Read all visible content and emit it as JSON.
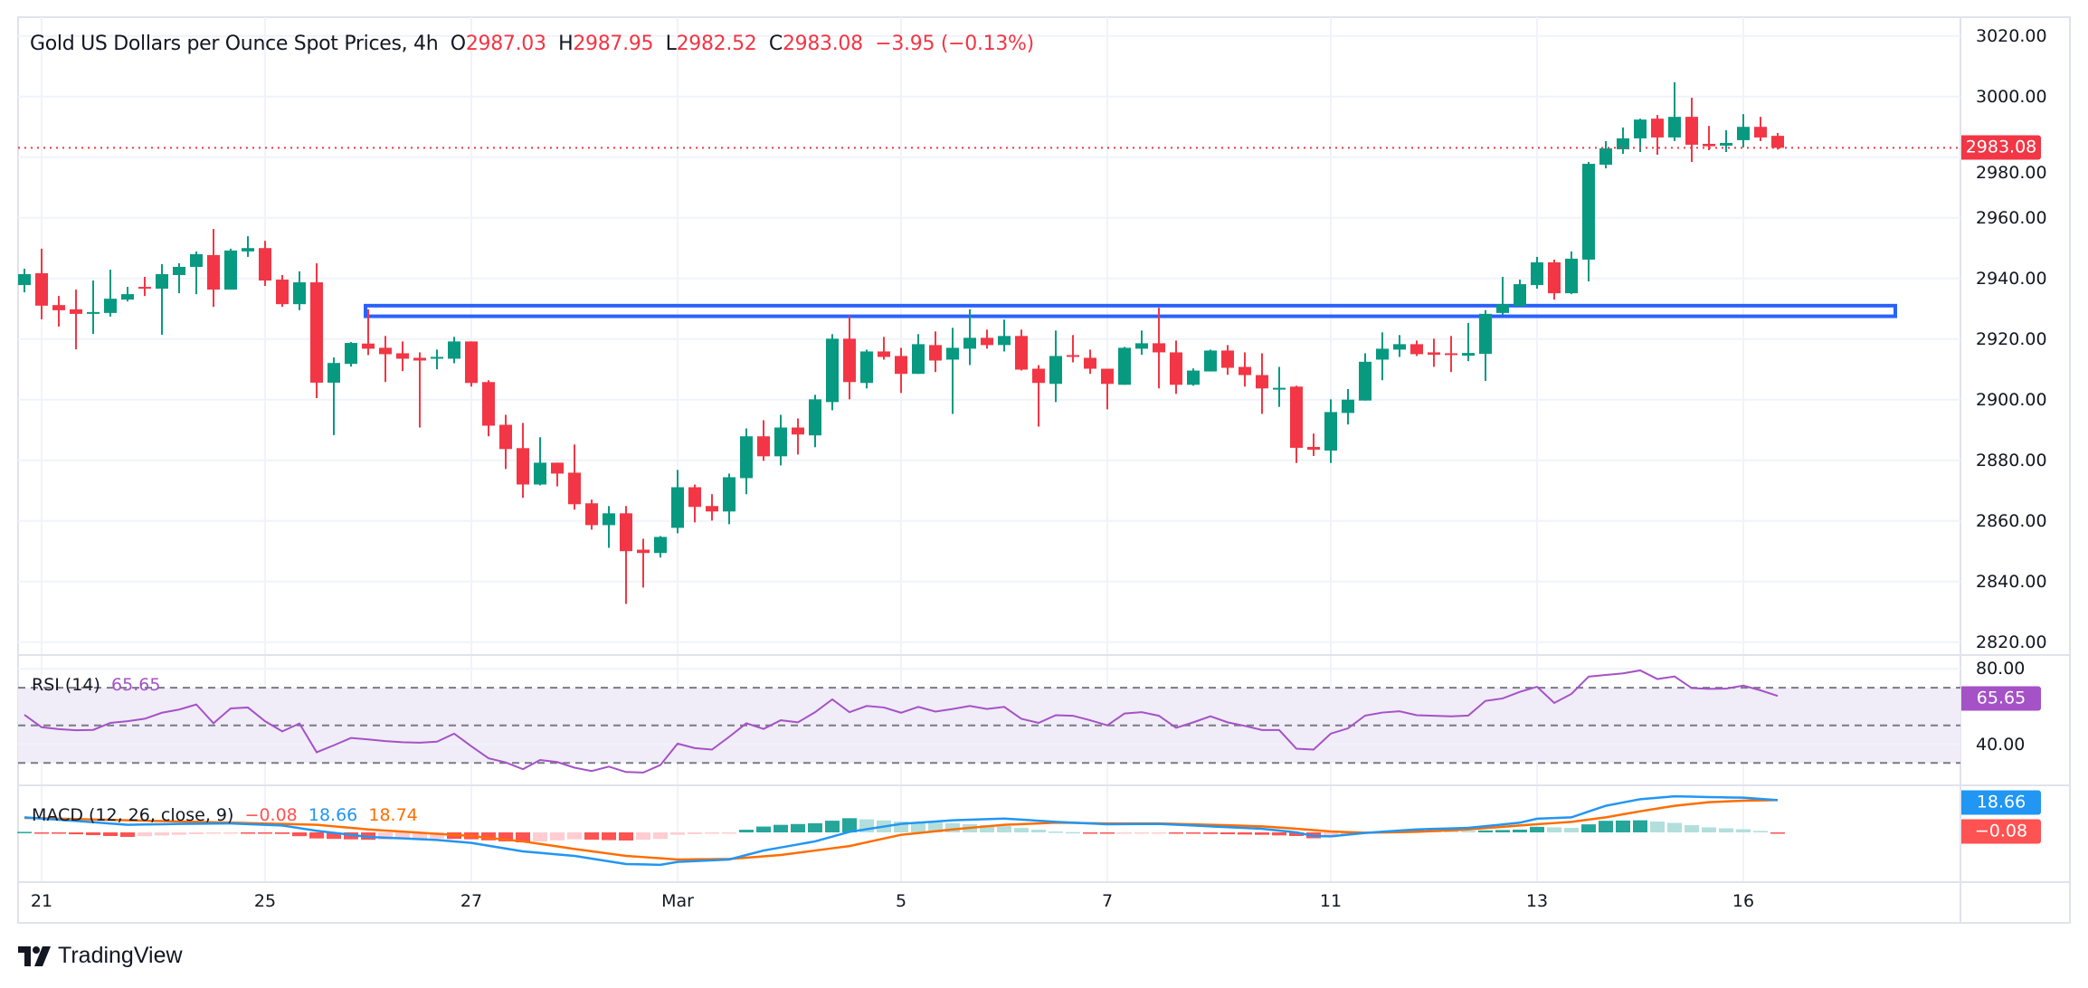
{
  "header": {
    "title": "Gold US Dollars per Ounce Spot Prices, 4h",
    "o_label": "O",
    "o_value": "2987.03",
    "h_label": "H",
    "h_value": "2987.95",
    "l_label": "L",
    "l_value": "2982.52",
    "c_label": "C",
    "c_value": "2983.08",
    "change": "−3.95 (−0.13%)"
  },
  "rsi_legend": {
    "name": "RSI (14)",
    "value": "65.65"
  },
  "macd_legend": {
    "name": "MACD (12, 26, close, 9)",
    "hist": "−0.08",
    "macd": "18.66",
    "signal": "18.74"
  },
  "axis_tags": {
    "last_price": "2983.08",
    "rsi": "65.65",
    "macd": "18.66",
    "hist": "−0.08"
  },
  "branding": {
    "logo_text": "TradingView"
  },
  "colors": {
    "up": "#089981",
    "down": "#F23645",
    "zone": "#2962FF",
    "rsi": "#A552C6",
    "macd": "#2196F3",
    "signal": "#FF6D00"
  },
  "chart_data": [
    {
      "type": "candlestick",
      "title": "Gold US Dollars per Ounce Spot Prices, 4h",
      "y_ticks": [
        "3020.00",
        "3000.00",
        "2980.00",
        "2960.00",
        "2940.00",
        "2920.00",
        "2900.00",
        "2880.00",
        "2860.00",
        "2840.00",
        "2820.00"
      ],
      "ylim": [
        2820,
        3020
      ],
      "x_ticks": [
        {
          "label": "21",
          "bar": 1
        },
        {
          "label": "25",
          "bar": 14
        },
        {
          "label": "27",
          "bar": 26
        },
        {
          "label": "Mar",
          "bar": 38
        },
        {
          "label": "5",
          "bar": 51
        },
        {
          "label": "7",
          "bar": 63
        },
        {
          "label": "11",
          "bar": 76
        },
        {
          "label": "13",
          "bar": 88
        },
        {
          "label": "16",
          "bar": 100
        }
      ],
      "grid": true,
      "last_price": 2983.08,
      "zone": {
        "top": 2931,
        "bottom": 2927.5,
        "from_bar": 20,
        "to_bar": 109
      },
      "ohlc": [
        [
          2937.8,
          2943.2,
          2935.4,
          2941.4
        ],
        [
          2941.7,
          2949.8,
          2926.5,
          2931.0
        ],
        [
          2931.2,
          2934.2,
          2924.1,
          2929.5
        ],
        [
          2929.8,
          2936.3,
          2916.6,
          2928.3
        ],
        [
          2928.6,
          2939.3,
          2921.7,
          2928.9
        ],
        [
          2928.6,
          2942.9,
          2927.4,
          2933.3
        ],
        [
          2933.0,
          2937.2,
          2932.4,
          2934.8
        ],
        [
          2937.2,
          2940.5,
          2934.2,
          2936.7
        ],
        [
          2936.6,
          2944.7,
          2921.4,
          2941.4
        ],
        [
          2941.1,
          2945.0,
          2935.1,
          2943.8
        ],
        [
          2943.8,
          2948.9,
          2934.8,
          2948.0
        ],
        [
          2947.7,
          2956.3,
          2930.6,
          2936.3
        ],
        [
          2936.3,
          2949.8,
          2936.3,
          2949.2
        ],
        [
          2948.9,
          2953.9,
          2947.1,
          2950.0
        ],
        [
          2950.0,
          2952.4,
          2937.5,
          2939.3
        ],
        [
          2939.6,
          2941.1,
          2930.6,
          2931.5
        ],
        [
          2931.5,
          2942.3,
          2929.5,
          2938.7
        ],
        [
          2938.7,
          2945.0,
          2900.5,
          2905.6
        ],
        [
          2905.6,
          2913.9,
          2888.3,
          2912.1
        ],
        [
          2911.8,
          2919.0,
          2910.9,
          2918.7
        ],
        [
          2918.5,
          2929.8,
          2914.7,
          2916.8
        ],
        [
          2917.1,
          2921.0,
          2905.8,
          2915.0
        ],
        [
          2915.3,
          2919.2,
          2909.4,
          2913.5
        ],
        [
          2913.8,
          2915.6,
          2890.8,
          2912.9
        ],
        [
          2913.5,
          2916.5,
          2910.0,
          2914.1
        ],
        [
          2913.5,
          2920.7,
          2912.0,
          2919.2
        ],
        [
          2919.2,
          2919.2,
          2904.3,
          2905.5
        ],
        [
          2905.8,
          2906.4,
          2887.9,
          2891.4
        ],
        [
          2891.7,
          2895.0,
          2877.1,
          2883.7
        ],
        [
          2884.0,
          2892.3,
          2867.6,
          2872.0
        ],
        [
          2872.0,
          2887.6,
          2871.7,
          2879.2
        ],
        [
          2879.2,
          2879.2,
          2871.4,
          2875.6
        ],
        [
          2875.9,
          2885.2,
          2863.7,
          2865.5
        ],
        [
          2865.8,
          2867.0,
          2857.1,
          2858.6
        ],
        [
          2858.6,
          2864.9,
          2851.1,
          2862.5
        ],
        [
          2862.5,
          2864.9,
          2832.6,
          2850.0
        ],
        [
          2850.5,
          2854.1,
          2838.0,
          2849.4
        ],
        [
          2849.4,
          2855.0,
          2847.9,
          2854.7
        ],
        [
          2857.7,
          2876.8,
          2855.9,
          2871.1
        ],
        [
          2871.1,
          2872.0,
          2859.5,
          2864.6
        ],
        [
          2864.9,
          2868.8,
          2860.1,
          2863.1
        ],
        [
          2863.1,
          2875.6,
          2858.9,
          2874.4
        ],
        [
          2874.1,
          2890.5,
          2868.8,
          2887.9
        ],
        [
          2887.9,
          2893.2,
          2879.8,
          2881.3
        ],
        [
          2881.3,
          2895.0,
          2878.3,
          2890.8
        ],
        [
          2890.8,
          2893.8,
          2881.9,
          2888.5
        ],
        [
          2888.2,
          2901.6,
          2884.3,
          2900.1
        ],
        [
          2899.2,
          2921.6,
          2896.5,
          2920.1
        ],
        [
          2920.1,
          2927.9,
          2900.1,
          2905.8
        ],
        [
          2905.5,
          2916.5,
          2903.7,
          2915.9
        ],
        [
          2915.9,
          2920.7,
          2913.2,
          2914.1
        ],
        [
          2914.4,
          2917.1,
          2902.2,
          2908.5
        ],
        [
          2908.5,
          2921.6,
          2908.5,
          2918.3
        ],
        [
          2918.0,
          2922.5,
          2909.1,
          2912.9
        ],
        [
          2913.2,
          2923.7,
          2895.3,
          2917.1
        ],
        [
          2916.8,
          2929.8,
          2911.4,
          2920.4
        ],
        [
          2920.4,
          2923.1,
          2916.8,
          2918.0
        ],
        [
          2918.0,
          2926.4,
          2915.9,
          2921.0
        ],
        [
          2921.0,
          2923.1,
          2909.6,
          2909.9
        ],
        [
          2910.2,
          2911.4,
          2891.1,
          2905.5
        ],
        [
          2905.2,
          2922.8,
          2899.2,
          2914.4
        ],
        [
          2914.7,
          2921.3,
          2912.3,
          2914.4
        ],
        [
          2913.8,
          2916.5,
          2908.5,
          2910.2
        ],
        [
          2910.2,
          2910.2,
          2896.8,
          2905.2
        ],
        [
          2904.9,
          2917.4,
          2904.9,
          2917.1
        ],
        [
          2916.8,
          2922.8,
          2914.8,
          2918.6
        ],
        [
          2918.6,
          2930.3,
          2903.7,
          2915.6
        ],
        [
          2915.6,
          2919.5,
          2901.9,
          2904.9
        ],
        [
          2904.9,
          2910.3,
          2904.6,
          2909.6
        ],
        [
          2909.3,
          2916.5,
          2909.3,
          2916.2
        ],
        [
          2916.2,
          2918.0,
          2908.2,
          2910.5
        ],
        [
          2910.8,
          2915.6,
          2904.3,
          2908.1
        ],
        [
          2908.1,
          2915.3,
          2895.3,
          2903.7
        ],
        [
          2903.6,
          2910.8,
          2897.6,
          2903.9
        ],
        [
          2904.3,
          2904.6,
          2879.1,
          2884.1
        ],
        [
          2884.4,
          2888.8,
          2881.4,
          2883.5
        ],
        [
          2883.2,
          2900.1,
          2879.1,
          2895.9
        ],
        [
          2895.6,
          2903.5,
          2891.8,
          2900.0
        ],
        [
          2899.7,
          2915.3,
          2899.7,
          2912.5
        ],
        [
          2913.2,
          2922.2,
          2906.4,
          2916.8
        ],
        [
          2916.5,
          2921.3,
          2914.1,
          2918.3
        ],
        [
          2918.3,
          2919.5,
          2914.4,
          2915.0
        ],
        [
          2915.6,
          2920.1,
          2910.8,
          2914.8
        ],
        [
          2915.3,
          2921.0,
          2909.1,
          2914.8
        ],
        [
          2914.5,
          2925.3,
          2912.7,
          2915.4
        ],
        [
          2915.1,
          2929.5,
          2906.2,
          2928.3
        ],
        [
          2928.6,
          2940.5,
          2928.0,
          2931.5
        ],
        [
          2930.9,
          2939.6,
          2930.9,
          2938.1
        ],
        [
          2937.8,
          2947.1,
          2936.6,
          2945.3
        ],
        [
          2945.3,
          2946.2,
          2933.0,
          2935.1
        ],
        [
          2935.1,
          2948.9,
          2934.8,
          2946.5
        ],
        [
          2946.2,
          2978.4,
          2939.0,
          2977.8
        ],
        [
          2977.5,
          2985.3,
          2976.3,
          2982.9
        ],
        [
          2982.6,
          2989.8,
          2981.1,
          2986.2
        ],
        [
          2986.2,
          2992.7,
          2981.7,
          2992.4
        ],
        [
          2992.7,
          2993.9,
          2980.8,
          2986.5
        ],
        [
          2986.5,
          3004.7,
          2985.3,
          2993.3
        ],
        [
          2993.3,
          2999.6,
          2978.4,
          2984.1
        ],
        [
          2984.4,
          2990.3,
          2982.3,
          2983.6
        ],
        [
          2983.8,
          2988.9,
          2981.7,
          2984.7
        ],
        [
          2985.6,
          2994.2,
          2983.2,
          2990.0
        ],
        [
          2990.0,
          2993.3,
          2985.3,
          2986.5
        ],
        [
          2987.03,
          2987.95,
          2982.52,
          2983.08
        ]
      ]
    },
    {
      "type": "line",
      "name": "RSI (14)",
      "y_ticks": [
        "80.00",
        "40.00"
      ],
      "levels": [
        70,
        50,
        30
      ],
      "values": [
        55.6,
        49,
        48,
        47.4,
        47.6,
        51.3,
        52.2,
        53.5,
        56.7,
        58.4,
        61.1,
        51.1,
        59,
        59.5,
        52.2,
        46.8,
        51,
        35.7,
        39.4,
        43.3,
        42.5,
        41.6,
        41,
        40.8,
        41.3,
        45.6,
        38.9,
        32.5,
        30.3,
        26.7,
        31.6,
        30.5,
        27.5,
        25.7,
        28.1,
        25.2,
        24.9,
        28.9,
        40.3,
        37.9,
        37.1,
        43.9,
        51.1,
        48.1,
        52.7,
        51.6,
        57,
        63.8,
        57,
        60.3,
        59.5,
        56.7,
        59.8,
        57.3,
        58.7,
        60.3,
        58.7,
        59.8,
        53.5,
        51.3,
        55.4,
        55.1,
        52.7,
        50,
        56.3,
        57,
        55.1,
        48.7,
        51.6,
        54.8,
        51.6,
        49.7,
        47.5,
        47.5,
        37.6,
        37.1,
        45.6,
        48.4,
        55.2,
        56.8,
        57.5,
        55.4,
        55.1,
        54.8,
        55.2,
        63,
        64.3,
        67.8,
        70.5,
        61.9,
        66.7,
        75.9,
        76.8,
        77.6,
        79.2,
        74.6,
        76,
        69.8,
        69.4,
        69.5,
        71.1,
        68.6,
        65.65
      ]
    },
    {
      "type": "line",
      "name": "MACD (12, 26, close, 9)",
      "macd_points": [
        [
          0,
          8.7
        ],
        [
          3,
          6.6
        ],
        [
          6,
          4.4
        ],
        [
          9,
          4.9
        ],
        [
          12,
          5.2
        ],
        [
          15,
          4.0
        ],
        [
          17,
          0.9
        ],
        [
          20,
          -2.6
        ],
        [
          24,
          -4.4
        ],
        [
          26,
          -6.1
        ],
        [
          29,
          -11
        ],
        [
          32,
          -13.6
        ],
        [
          35,
          -18.3
        ],
        [
          37,
          -18.8
        ],
        [
          38,
          -17.1
        ],
        [
          41,
          -15.7
        ],
        [
          43,
          -10.5
        ],
        [
          46,
          -5.2
        ],
        [
          48,
          0.3
        ],
        [
          51,
          4.9
        ],
        [
          54,
          7.0
        ],
        [
          57,
          8.0
        ],
        [
          60,
          6.1
        ],
        [
          63,
          4.7
        ],
        [
          66,
          4.9
        ],
        [
          69,
          3.5
        ],
        [
          72,
          2.1
        ],
        [
          74,
          0
        ],
        [
          75,
          -2.1
        ],
        [
          76,
          -2.3
        ],
        [
          78,
          -0.3
        ],
        [
          81,
          1.7
        ],
        [
          84,
          2.6
        ],
        [
          87,
          5.6
        ],
        [
          88,
          7.9
        ],
        [
          90,
          8.7
        ],
        [
          92,
          15.4
        ],
        [
          94,
          19.2
        ],
        [
          96,
          20.9
        ],
        [
          98,
          20.4
        ],
        [
          100,
          20.1
        ],
        [
          102,
          18.66
        ]
      ],
      "signal_points": [
        [
          0,
          8.4
        ],
        [
          6,
          7.0
        ],
        [
          12,
          5.6
        ],
        [
          17,
          4.4
        ],
        [
          20,
          1.7
        ],
        [
          26,
          -2.1
        ],
        [
          29,
          -5.2
        ],
        [
          32,
          -9.6
        ],
        [
          35,
          -13.6
        ],
        [
          38,
          -15.7
        ],
        [
          41,
          -15.4
        ],
        [
          44,
          -13.1
        ],
        [
          48,
          -7.9
        ],
        [
          51,
          -1.4
        ],
        [
          54,
          1.7
        ],
        [
          57,
          4.4
        ],
        [
          60,
          5.6
        ],
        [
          63,
          5.2
        ],
        [
          66,
          5.2
        ],
        [
          69,
          4.4
        ],
        [
          72,
          3.5
        ],
        [
          74,
          2.1
        ],
        [
          76,
          0.5
        ],
        [
          78,
          -0.2
        ],
        [
          81,
          0.3
        ],
        [
          84,
          1.7
        ],
        [
          87,
          4.0
        ],
        [
          90,
          6.1
        ],
        [
          92,
          8.7
        ],
        [
          94,
          12.2
        ],
        [
          96,
          15.4
        ],
        [
          98,
          17.5
        ],
        [
          100,
          18.3
        ],
        [
          102,
          18.74
        ]
      ]
    }
  ]
}
